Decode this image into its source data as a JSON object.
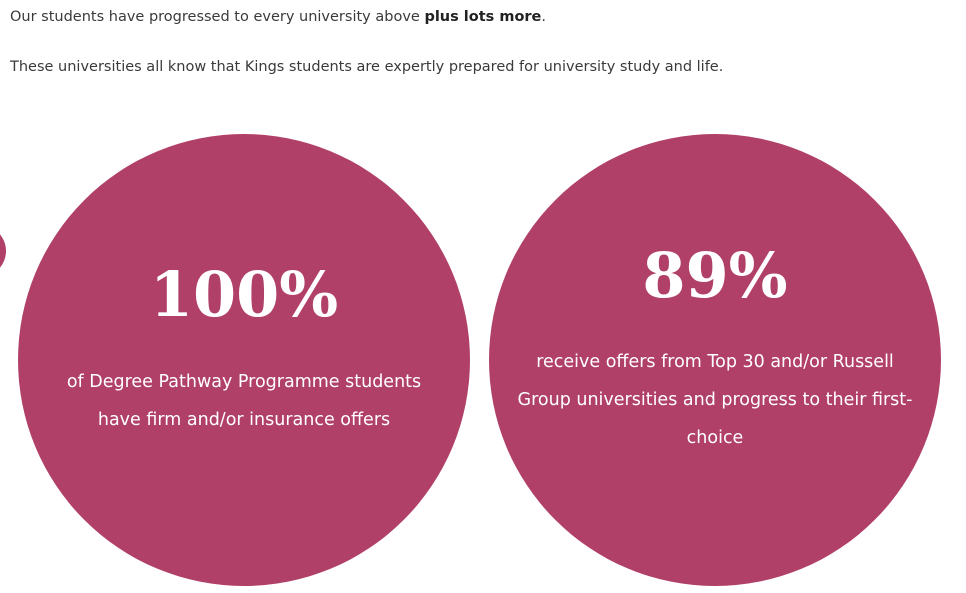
{
  "intro": {
    "text": "Our students have progressed to every university above ",
    "bold": "plus lots more",
    "end": "."
  },
  "note": "These universities all know that Kings students are expertly prepared for university study and life.",
  "stats": [
    {
      "figure": "100%",
      "description": "of Degree Pathway Programme students have firm and/or insurance offers"
    },
    {
      "figure": "89%",
      "description": "receive offers from Top 30 and/or Russell Group universities and progress to their first-choice"
    }
  ]
}
